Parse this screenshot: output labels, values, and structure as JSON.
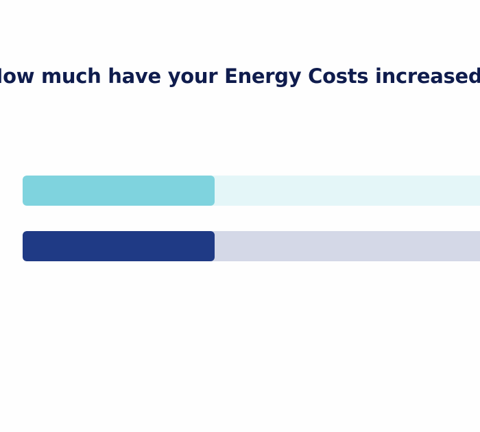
{
  "title": "How much have your Energy Costs increased?",
  "chart_data": {
    "type": "bar",
    "orientation": "horizontal",
    "series": [
      {
        "values": [
          0.4
        ],
        "color": "#7fd3de",
        "track_color": "#e4f6f8"
      },
      {
        "values": [
          0.4
        ],
        "color": "#1f3a85",
        "track_color": "#d4d8e7"
      }
    ]
  }
}
